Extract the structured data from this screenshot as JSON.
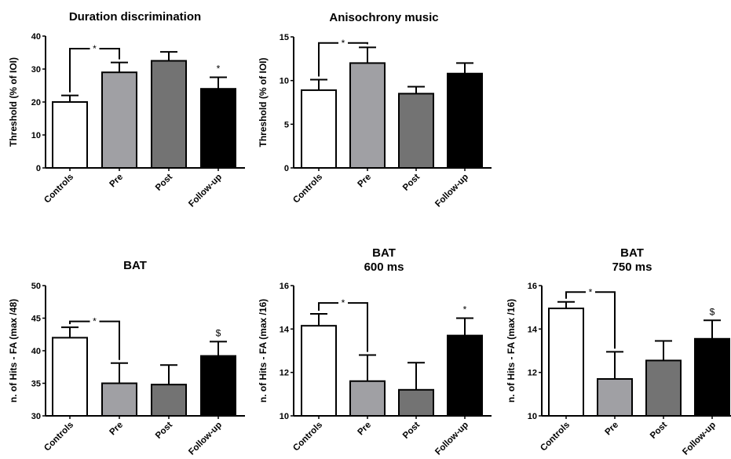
{
  "figure": {
    "panel_count": 5
  },
  "chart_data": [
    {
      "type": "bar",
      "title": [
        "Duration discrimination"
      ],
      "ylabel": "Threshold (% of IOI)",
      "categories": [
        "Controls",
        "Pre",
        "Post",
        "Follow-up"
      ],
      "values": [
        20,
        29,
        32.5,
        24
      ],
      "errors": [
        2,
        3,
        2.7,
        3.5
      ],
      "ylim": [
        0,
        40
      ],
      "yticks": [
        0,
        10,
        20,
        30,
        40
      ],
      "bar_colors": [
        "#ffffff",
        "#a0a0a4",
        "#737373",
        "#000000"
      ],
      "annotations": [
        {
          "type": "bracket",
          "from": 0,
          "to": 1,
          "y": 36.2,
          "label": "*"
        },
        {
          "type": "mark",
          "index": 3,
          "label": "*"
        }
      ]
    },
    {
      "type": "bar",
      "title": [
        "Anisochrony music"
      ],
      "ylabel": "Threshold (% of IOI)",
      "categories": [
        "Controls",
        "Pre",
        "Post",
        "Follow-up"
      ],
      "values": [
        8.9,
        12,
        8.5,
        10.8
      ],
      "errors": [
        1.2,
        1.8,
        0.8,
        1.2
      ],
      "ylim": [
        0,
        15
      ],
      "yticks": [
        0,
        5,
        10,
        15
      ],
      "bar_colors": [
        "#ffffff",
        "#a0a0a4",
        "#737373",
        "#000000"
      ],
      "annotations": [
        {
          "type": "bracket",
          "from": 0,
          "to": 1,
          "y": 14.3,
          "label": "*"
        }
      ]
    },
    {
      "type": "bar",
      "title": [
        "BAT"
      ],
      "ylabel": "n. of Hits - FA (max /48)",
      "categories": [
        "Controls",
        "Pre",
        "Post",
        "Follow-up"
      ],
      "values": [
        42,
        35,
        34.8,
        39.2
      ],
      "errors": [
        1.6,
        3.1,
        3,
        2.2
      ],
      "ylim": [
        30,
        50
      ],
      "yticks": [
        30,
        35,
        40,
        45,
        50
      ],
      "bar_colors": [
        "#ffffff",
        "#a0a0a4",
        "#737373",
        "#000000"
      ],
      "annotations": [
        {
          "type": "bracket",
          "from": 0,
          "to": 1,
          "y": 44.5,
          "label": "*"
        },
        {
          "type": "mark",
          "index": 3,
          "label": "$"
        }
      ]
    },
    {
      "type": "bar",
      "title": [
        "BAT",
        "600 ms"
      ],
      "ylabel": "n. of Hits - FA (max /16)",
      "categories": [
        "Controls",
        "Pre",
        "Post",
        "Follow-up"
      ],
      "values": [
        14.15,
        11.6,
        11.2,
        13.7
      ],
      "errors": [
        0.55,
        1.2,
        1.25,
        0.8
      ],
      "ylim": [
        10,
        16
      ],
      "yticks": [
        10,
        12,
        14,
        16
      ],
      "bar_colors": [
        "#ffffff",
        "#a0a0a4",
        "#737373",
        "#000000"
      ],
      "annotations": [
        {
          "type": "bracket",
          "from": 0,
          "to": 1,
          "y": 15.2,
          "label": "*"
        },
        {
          "type": "mark",
          "index": 3,
          "label": "*"
        }
      ]
    },
    {
      "type": "bar",
      "title": [
        "BAT",
        "750 ms"
      ],
      "ylabel": "n. of Hits - FA (max /16)",
      "categories": [
        "Controls",
        "Pre",
        "Post",
        "Follow-up"
      ],
      "values": [
        14.95,
        11.7,
        12.55,
        13.55
      ],
      "errors": [
        0.3,
        1.25,
        0.9,
        0.85
      ],
      "ylim": [
        10,
        16
      ],
      "yticks": [
        10,
        12,
        14,
        16
      ],
      "bar_colors": [
        "#ffffff",
        "#a0a0a4",
        "#737373",
        "#000000"
      ],
      "annotations": [
        {
          "type": "bracket",
          "from": 0,
          "to": 1,
          "y": 15.7,
          "label": "*"
        },
        {
          "type": "mark",
          "index": 3,
          "label": "$"
        }
      ]
    }
  ]
}
